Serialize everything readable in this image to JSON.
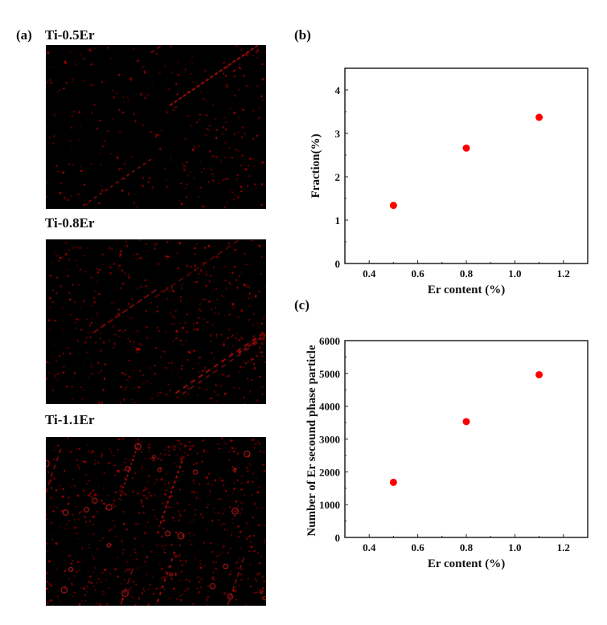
{
  "panel_a": {
    "label": "(a)",
    "images": [
      {
        "title": "Ti-0.5Er",
        "density": 0.5
      },
      {
        "title": "Ti-0.8Er",
        "density": 0.8
      },
      {
        "title": "Ti-1.1Er",
        "density": 1.1
      }
    ]
  },
  "panel_b_label": "(b)",
  "panel_c_label": "(c)",
  "chart_data": [
    {
      "type": "scatter",
      "panel": "(b)",
      "title": "",
      "xlabel": "Er content (%)",
      "ylabel": "Fraction(%)",
      "xlim": [
        0.3,
        1.3
      ],
      "ylim": [
        0,
        4.5
      ],
      "xticks": [
        "0.4",
        "0.6",
        "0.8",
        "1.0",
        "1.2"
      ],
      "xtick_values": [
        0.4,
        0.6,
        0.8,
        1.0,
        1.2
      ],
      "yticks": [
        "0",
        "1",
        "2",
        "3",
        "4"
      ],
      "ytick_values": [
        0,
        1,
        2,
        3,
        4
      ],
      "x": [
        0.5,
        0.8,
        1.1
      ],
      "y": [
        1.34,
        2.66,
        3.37
      ],
      "color": "#ff0000",
      "grid": false
    },
    {
      "type": "scatter",
      "panel": "(c)",
      "title": "",
      "xlabel": "Er content (%)",
      "ylabel": "Number of Er secound phase particle",
      "xlim": [
        0.3,
        1.3
      ],
      "ylim": [
        0,
        6000
      ],
      "xticks": [
        "0.4",
        "0.6",
        "0.8",
        "1.0",
        "1.2"
      ],
      "xtick_values": [
        0.4,
        0.6,
        0.8,
        1.0,
        1.2
      ],
      "yticks": [
        "0",
        "1000",
        "2000",
        "3000",
        "4000",
        "5000",
        "6000"
      ],
      "ytick_values": [
        0,
        1000,
        2000,
        3000,
        4000,
        5000,
        6000
      ],
      "x": [
        0.5,
        0.8,
        1.1
      ],
      "y": [
        1680,
        3530,
        4960
      ],
      "color": "#ff0000",
      "grid": false
    }
  ]
}
